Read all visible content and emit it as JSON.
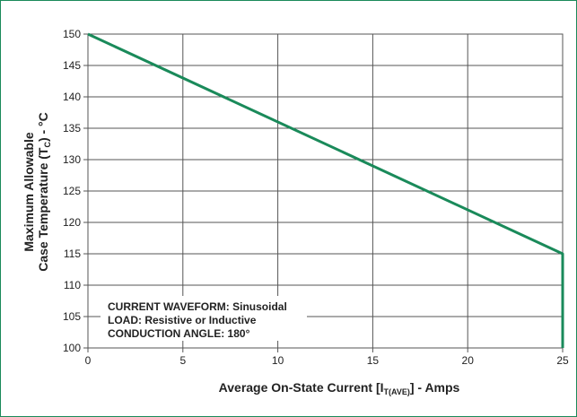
{
  "chart_data": {
    "type": "line",
    "xlabel_main": "Average On-State Current [I",
    "xlabel_sub": "T(AVE)",
    "xlabel_tail": "] - Amps",
    "ylabel_line1": "Maximum Allowable",
    "ylabel_line2_main": "Case Temperature (T",
    "ylabel_line2_sub": "C",
    "ylabel_line2_tail": ") - °C",
    "xlim": [
      0,
      25
    ],
    "ylim": [
      100,
      150
    ],
    "x_ticks": [
      "0",
      "5",
      "10",
      "15",
      "20",
      "25"
    ],
    "y_ticks": [
      "100",
      "105",
      "110",
      "115",
      "120",
      "125",
      "130",
      "135",
      "140",
      "145",
      "150"
    ],
    "grid": true,
    "series": [
      {
        "color": "#1a8a5a",
        "x": [
          0,
          25,
          25
        ],
        "y": [
          150,
          115,
          100
        ]
      }
    ],
    "annotations": [
      "CURRENT WAVEFORM: Sinusoidal",
      "LOAD: Resistive or Inductive",
      "CONDUCTION ANGLE: 180°"
    ]
  }
}
